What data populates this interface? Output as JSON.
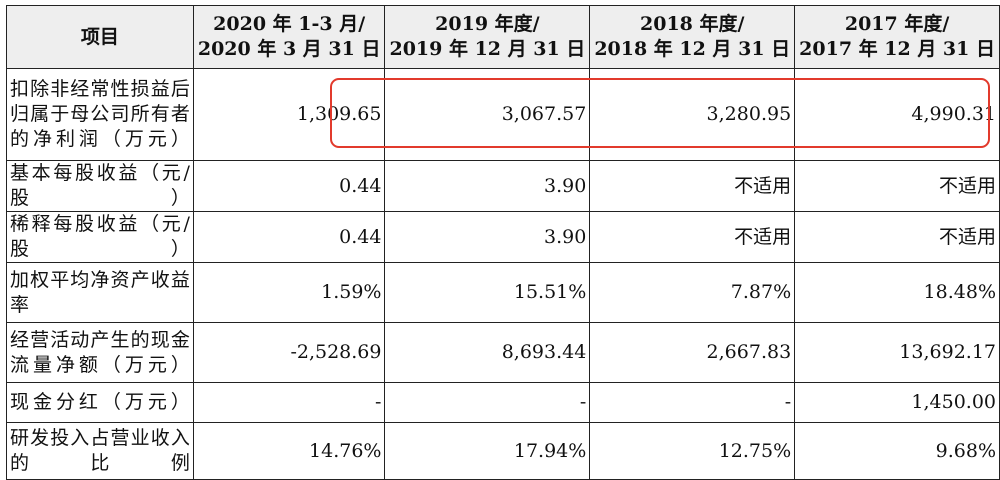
{
  "table": {
    "header": [
      {
        "lines": [
          "项目"
        ]
      },
      {
        "lines": [
          "2020 年 1-3 月/",
          "2020 年 3 月 31 日"
        ]
      },
      {
        "lines": [
          "2019 年度/",
          "2019 年 12 月 31 日"
        ]
      },
      {
        "lines": [
          "2018 年度/",
          "2018 年 12 月 31 日"
        ]
      },
      {
        "lines": [
          "2017 年度/",
          "2017 年 12 月 31 日"
        ]
      }
    ],
    "rows": [
      {
        "label": "扣除非经常性损益后归属于母公司所有者的净利润（万元）",
        "values": [
          "1,309.65",
          "3,067.57",
          "3,280.95",
          "4,990.31"
        ]
      },
      {
        "label": "基本每股收益（元/股）",
        "values": [
          "0.44",
          "3.90",
          "不适用",
          "不适用"
        ]
      },
      {
        "label": "稀释每股收益（元/股）",
        "values": [
          "0.44",
          "3.90",
          "不适用",
          "不适用"
        ]
      },
      {
        "label": "加权平均净资产收益率",
        "values": [
          "1.59%",
          "15.51%",
          "7.87%",
          "18.48%"
        ]
      },
      {
        "label": "经营活动产生的现金流量净额（万元）",
        "values": [
          "-2,528.69",
          "8,693.44",
          "2,667.83",
          "13,692.17"
        ]
      },
      {
        "label": "现金分红（万元）",
        "values": [
          "-",
          "-",
          "-",
          "1,450.00"
        ]
      },
      {
        "label": "研发投入占营业收入的比例",
        "values": [
          "14.76%",
          "17.94%",
          "12.75%",
          "9.68%"
        ]
      }
    ]
  },
  "highlight": {
    "color": "#e23a2c"
  }
}
